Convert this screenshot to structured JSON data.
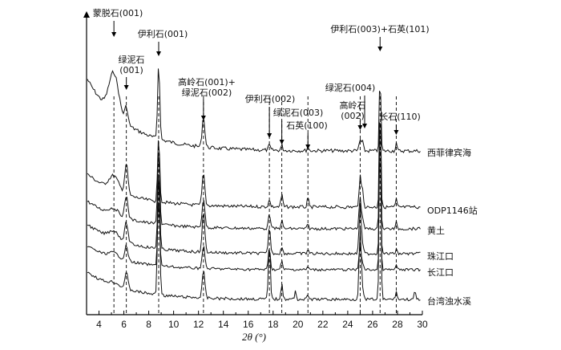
{
  "chart_data": {
    "type": "line",
    "xlabel": "2θ (°)",
    "ylabel": "",
    "xlim": [
      3,
      30
    ],
    "xticks": [
      4,
      6,
      8,
      10,
      12,
      14,
      16,
      18,
      20,
      22,
      24,
      26,
      28,
      30
    ],
    "yaxis": {
      "ticks": false,
      "arrow": true
    },
    "grid": false,
    "series": [
      {
        "name": "西菲律宾海"
      },
      {
        "name": "ODP1146站"
      },
      {
        "name": "黄土"
      },
      {
        "name": "珠江口"
      },
      {
        "name": "长江口"
      },
      {
        "name": "台湾浊水溪"
      }
    ],
    "peak_markers": [
      {
        "x": 5.2,
        "label": [
          "蒙脱石(001)"
        ]
      },
      {
        "x": 6.2,
        "label": [
          "绿泥石",
          "(001)"
        ]
      },
      {
        "x": 8.8,
        "label": [
          "伊利石(001)"
        ]
      },
      {
        "x": 12.4,
        "label": [
          "高岭石(001)+",
          "绿泥石(002)"
        ]
      },
      {
        "x": 17.7,
        "label": [
          "伊利石(002)"
        ]
      },
      {
        "x": 18.7,
        "label": [
          "绿泥石(003)"
        ]
      },
      {
        "x": 20.8,
        "label": [
          "石英(100)"
        ]
      },
      {
        "x": 25.0,
        "label": [
          "高岭石",
          "(002)"
        ]
      },
      {
        "x": 25.2,
        "label": [
          "绿泥石(004)"
        ]
      },
      {
        "x": 26.6,
        "label": [
          "伊利石(003)+石英(101)"
        ]
      },
      {
        "x": 27.9,
        "label": [
          "长石(110)"
        ]
      }
    ]
  }
}
